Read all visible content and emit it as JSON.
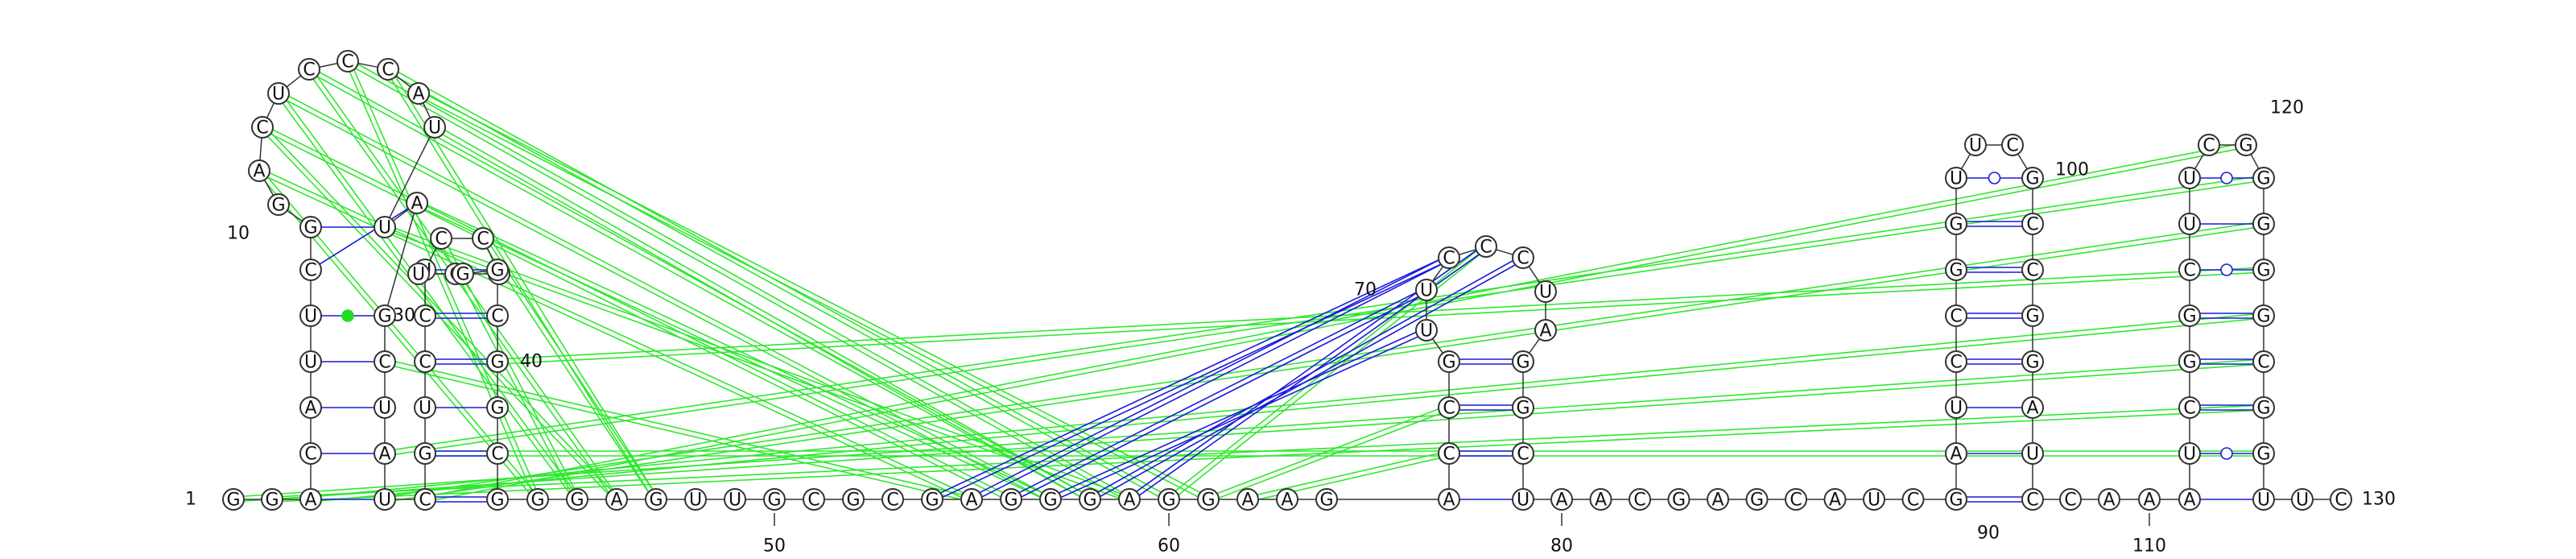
{
  "colors": {
    "background": "#ffffff",
    "backbone": "#333333",
    "canonical_pair": "#1a1adb",
    "tertiary_interaction": "#2ee82e",
    "gu_pair_marker_fill": "#ffffff",
    "special_pair_marker_fill": "#22dd22"
  },
  "number_labels": [
    {
      "text": "1",
      "anchor": "n1"
    },
    {
      "text": "10",
      "anchor": "n10"
    },
    {
      "text": "30",
      "anchor": "n30"
    },
    {
      "text": "40",
      "anchor": "n40"
    },
    {
      "text": "50",
      "anchor": "n50"
    },
    {
      "text": "60",
      "anchor": "n60"
    },
    {
      "text": "70",
      "anchor": "n70"
    },
    {
      "text": "80",
      "anchor": "n80"
    },
    {
      "text": "90",
      "anchor": "n90"
    },
    {
      "text": "100",
      "anchor": "n100"
    },
    {
      "text": "110",
      "anchor": "n110"
    },
    {
      "text": "120",
      "anchor": "n120"
    },
    {
      "text": "130",
      "anchor": "n130"
    }
  ],
  "nucleotides": [
    {
      "id": "n1",
      "letter": "G"
    },
    {
      "id": "n2",
      "letter": "G"
    },
    {
      "id": "n3",
      "letter": "A"
    },
    {
      "id": "n4",
      "letter": "C"
    },
    {
      "id": "n5",
      "letter": "A"
    },
    {
      "id": "n6",
      "letter": "U"
    },
    {
      "id": "n7",
      "letter": "U"
    },
    {
      "id": "n8",
      "letter": "C"
    },
    {
      "id": "n9",
      "letter": "G"
    },
    {
      "id": "n10",
      "letter": "G"
    },
    {
      "id": "n11",
      "letter": "A"
    },
    {
      "id": "n12",
      "letter": "C"
    },
    {
      "id": "n13",
      "letter": "U"
    },
    {
      "id": "n14",
      "letter": "C"
    },
    {
      "id": "n15",
      "letter": "C"
    },
    {
      "id": "n16",
      "letter": "C"
    },
    {
      "id": "n17",
      "letter": "A"
    },
    {
      "id": "n18",
      "letter": "U"
    },
    {
      "id": "n19",
      "letter": "U"
    },
    {
      "id": "n20",
      "letter": "A"
    },
    {
      "id": "n21",
      "letter": "G"
    },
    {
      "id": "n22",
      "letter": "C"
    },
    {
      "id": "n23",
      "letter": "U"
    },
    {
      "id": "n24",
      "letter": "A"
    },
    {
      "id": "n25",
      "letter": "U"
    },
    {
      "id": "n26",
      "letter": "C"
    },
    {
      "id": "n27",
      "letter": "G"
    },
    {
      "id": "n28",
      "letter": "U"
    },
    {
      "id": "n29",
      "letter": "C"
    },
    {
      "id": "n30",
      "letter": "C"
    },
    {
      "id": "n31",
      "letter": "U"
    },
    {
      "id": "n32",
      "letter": "C"
    },
    {
      "id": "n33",
      "letter": "C"
    },
    {
      "id": "n34",
      "letter": "C"
    },
    {
      "id": "n35",
      "letter": "C"
    },
    {
      "id": "n36",
      "letter": "U"
    },
    {
      "id": "n37",
      "letter": "G"
    },
    {
      "id": "n38",
      "letter": "G"
    },
    {
      "id": "n39",
      "letter": "C"
    },
    {
      "id": "n40",
      "letter": "G"
    },
    {
      "id": "n41",
      "letter": "G"
    },
    {
      "id": "n42",
      "letter": "C"
    },
    {
      "id": "n43",
      "letter": "G"
    },
    {
      "id": "n44",
      "letter": "G"
    },
    {
      "id": "n45",
      "letter": "G"
    },
    {
      "id": "n46",
      "letter": "A"
    },
    {
      "id": "n47",
      "letter": "G"
    },
    {
      "id": "n48",
      "letter": "U"
    },
    {
      "id": "n49",
      "letter": "U"
    },
    {
      "id": "n50",
      "letter": "G"
    },
    {
      "id": "n51",
      "letter": "C"
    },
    {
      "id": "n52",
      "letter": "G"
    },
    {
      "id": "n53",
      "letter": "C"
    },
    {
      "id": "n54",
      "letter": "G"
    },
    {
      "id": "n55",
      "letter": "A"
    },
    {
      "id": "n56",
      "letter": "G"
    },
    {
      "id": "n57",
      "letter": "G"
    },
    {
      "id": "n58",
      "letter": "G"
    },
    {
      "id": "n59",
      "letter": "A"
    },
    {
      "id": "n60",
      "letter": "G"
    },
    {
      "id": "n61",
      "letter": "G"
    },
    {
      "id": "n62",
      "letter": "A"
    },
    {
      "id": "n63",
      "letter": "A"
    },
    {
      "id": "n64",
      "letter": "G"
    },
    {
      "id": "n65",
      "letter": "A"
    },
    {
      "id": "n66",
      "letter": "C"
    },
    {
      "id": "n67",
      "letter": "C"
    },
    {
      "id": "n68",
      "letter": "G"
    },
    {
      "id": "n69",
      "letter": "U"
    },
    {
      "id": "n70",
      "letter": "U"
    },
    {
      "id": "n71",
      "letter": "C"
    },
    {
      "id": "n72",
      "letter": "C"
    },
    {
      "id": "n73",
      "letter": "C"
    },
    {
      "id": "n74",
      "letter": "U"
    },
    {
      "id": "n75",
      "letter": "A"
    },
    {
      "id": "n76",
      "letter": "G"
    },
    {
      "id": "n77",
      "letter": "G"
    },
    {
      "id": "n78",
      "letter": "C"
    },
    {
      "id": "n79",
      "letter": "U"
    },
    {
      "id": "n80",
      "letter": "A"
    },
    {
      "id": "n81",
      "letter": "A"
    },
    {
      "id": "n82",
      "letter": "C"
    },
    {
      "id": "n83",
      "letter": "G"
    },
    {
      "id": "n84",
      "letter": "A"
    },
    {
      "id": "n85",
      "letter": "G"
    },
    {
      "id": "n86",
      "letter": "C"
    },
    {
      "id": "n87",
      "letter": "A"
    },
    {
      "id": "n88",
      "letter": "U"
    },
    {
      "id": "n89",
      "letter": "C"
    },
    {
      "id": "n90",
      "letter": "G"
    },
    {
      "id": "n91",
      "letter": "A"
    },
    {
      "id": "n92",
      "letter": "U"
    },
    {
      "id": "n93",
      "letter": "C"
    },
    {
      "id": "n94",
      "letter": "C"
    },
    {
      "id": "n95",
      "letter": "G"
    },
    {
      "id": "n96",
      "letter": "G"
    },
    {
      "id": "n97",
      "letter": "U"
    },
    {
      "id": "n98",
      "letter": "U"
    },
    {
      "id": "n99",
      "letter": "C"
    },
    {
      "id": "n100",
      "letter": "G"
    },
    {
      "id": "n101",
      "letter": "C"
    },
    {
      "id": "n102",
      "letter": "C"
    },
    {
      "id": "n103",
      "letter": "G"
    },
    {
      "id": "n104",
      "letter": "G"
    },
    {
      "id": "n105",
      "letter": "A"
    },
    {
      "id": "n106",
      "letter": "U"
    },
    {
      "id": "n107",
      "letter": "C"
    },
    {
      "id": "n108",
      "letter": "C"
    },
    {
      "id": "n109",
      "letter": "A"
    },
    {
      "id": "n110",
      "letter": "A"
    },
    {
      "id": "n111",
      "letter": "A"
    },
    {
      "id": "n112",
      "letter": "U"
    },
    {
      "id": "n113",
      "letter": "C"
    },
    {
      "id": "n114",
      "letter": "G"
    },
    {
      "id": "n115",
      "letter": "G"
    },
    {
      "id": "n116",
      "letter": "C"
    },
    {
      "id": "n117",
      "letter": "U"
    },
    {
      "id": "n118",
      "letter": "U"
    },
    {
      "id": "n119",
      "letter": "C"
    },
    {
      "id": "n120",
      "letter": "G"
    },
    {
      "id": "n121",
      "letter": "G"
    },
    {
      "id": "n122",
      "letter": "G"
    },
    {
      "id": "n123",
      "letter": "G"
    },
    {
      "id": "n124",
      "letter": "G"
    },
    {
      "id": "n125",
      "letter": "C"
    },
    {
      "id": "n126",
      "letter": "G"
    },
    {
      "id": "n127",
      "letter": "G"
    },
    {
      "id": "n128",
      "letter": "U"
    },
    {
      "id": "n129",
      "letter": "U"
    },
    {
      "id": "n130",
      "letter": "C"
    }
  ],
  "base_pairs": [
    {
      "a": "n3",
      "b": "n25",
      "type": "canonical"
    },
    {
      "a": "n4",
      "b": "n24",
      "type": "canonical"
    },
    {
      "a": "n5",
      "b": "n23",
      "type": "canonical"
    },
    {
      "a": "n6",
      "b": "n22",
      "type": "canonical"
    },
    {
      "a": "n7",
      "b": "n21",
      "type": "special"
    },
    {
      "a": "n8",
      "b": "n20",
      "type": "canonical"
    },
    {
      "a": "n9",
      "b": "n19",
      "type": "canonical"
    },
    {
      "a": "n26",
      "b": "n43",
      "type": "canonical"
    },
    {
      "a": "n27",
      "b": "n42",
      "type": "canonical"
    },
    {
      "a": "n28",
      "b": "n41",
      "type": "canonical"
    },
    {
      "a": "n29",
      "b": "n40",
      "type": "canonical"
    },
    {
      "a": "n30",
      "b": "n39",
      "type": "canonical"
    },
    {
      "a": "n31",
      "b": "n38",
      "type": "special"
    },
    {
      "a": "n65",
      "b": "n79",
      "type": "canonical"
    },
    {
      "a": "n66",
      "b": "n78",
      "type": "canonical"
    },
    {
      "a": "n67",
      "b": "n77",
      "type": "canonical"
    },
    {
      "a": "n68",
      "b": "n76",
      "type": "canonical"
    },
    {
      "a": "n90",
      "b": "n107",
      "type": "canonical"
    },
    {
      "a": "n91",
      "b": "n106",
      "type": "canonical"
    },
    {
      "a": "n92",
      "b": "n105",
      "type": "canonical"
    },
    {
      "a": "n93",
      "b": "n104",
      "type": "canonical"
    },
    {
      "a": "n94",
      "b": "n103",
      "type": "canonical"
    },
    {
      "a": "n95",
      "b": "n102",
      "type": "canonical"
    },
    {
      "a": "n96",
      "b": "n101",
      "type": "canonical"
    },
    {
      "a": "n97",
      "b": "n100",
      "type": "gu"
    },
    {
      "a": "n111",
      "b": "n128",
      "type": "canonical"
    },
    {
      "a": "n112",
      "b": "n127",
      "type": "gu"
    },
    {
      "a": "n113",
      "b": "n126",
      "type": "canonical"
    },
    {
      "a": "n114",
      "b": "n125",
      "type": "canonical"
    },
    {
      "a": "n115",
      "b": "n124",
      "type": "canonical"
    },
    {
      "a": "n116",
      "b": "n123",
      "type": "gu"
    },
    {
      "a": "n117",
      "b": "n122",
      "type": "canonical"
    },
    {
      "a": "n118",
      "b": "n121",
      "type": "gu"
    }
  ],
  "tertiary_interactions": [
    {
      "a": "n13",
      "b": "n57",
      "color": "green"
    },
    {
      "a": "n14",
      "b": "n58",
      "color": "green"
    },
    {
      "a": "n15",
      "b": "n59",
      "color": "green"
    },
    {
      "a": "n16",
      "b": "n60",
      "color": "green"
    },
    {
      "a": "n17",
      "b": "n61",
      "color": "green"
    },
    {
      "a": "n12",
      "b": "n56",
      "color": "green"
    },
    {
      "a": "n11",
      "b": "n55",
      "color": "green"
    },
    {
      "a": "n13",
      "b": "n45",
      "color": "green"
    },
    {
      "a": "n14",
      "b": "n46",
      "color": "green"
    },
    {
      "a": "n15",
      "b": "n44",
      "color": "green"
    },
    {
      "a": "n16",
      "b": "n47",
      "color": "green"
    },
    {
      "a": "n18",
      "b": "n58",
      "color": "green"
    },
    {
      "a": "n19",
      "b": "n59",
      "color": "green"
    },
    {
      "a": "n11",
      "b": "n44",
      "color": "green"
    },
    {
      "a": "n12",
      "b": "n46",
      "color": "green"
    },
    {
      "a": "n32",
      "b": "n45",
      "color": "green"
    },
    {
      "a": "n33",
      "b": "n47",
      "color": "green"
    },
    {
      "a": "n20",
      "b": "n57",
      "color": "green"
    },
    {
      "a": "n22",
      "b": "n55",
      "color": "green"
    },
    {
      "a": "n1",
      "b": "n125",
      "color": "green"
    },
    {
      "a": "n2",
      "b": "n126",
      "color": "green"
    },
    {
      "a": "n3",
      "b": "n124",
      "color": "green"
    },
    {
      "a": "n24",
      "b": "n121",
      "color": "green"
    },
    {
      "a": "n25",
      "b": "n122",
      "color": "green"
    },
    {
      "a": "n40",
      "b": "n123",
      "color": "green"
    },
    {
      "a": "n26",
      "b": "n120",
      "color": "green"
    },
    {
      "a": "n27",
      "b": "n127",
      "color": "green"
    },
    {
      "a": "n61",
      "b": "n67",
      "color": "green"
    },
    {
      "a": "n62",
      "b": "n66",
      "color": "green"
    },
    {
      "a": "n60",
      "b": "n72",
      "color": "green"
    },
    {
      "a": "n54",
      "b": "n71",
      "color": "blue"
    },
    {
      "a": "n56",
      "b": "n70",
      "color": "blue"
    },
    {
      "a": "n57",
      "b": "n69",
      "color": "blue"
    },
    {
      "a": "n58",
      "b": "n73",
      "color": "blue"
    },
    {
      "a": "n59",
      "b": "n72",
      "color": "blue"
    },
    {
      "a": "n55",
      "b": "n71",
      "color": "blue"
    }
  ]
}
